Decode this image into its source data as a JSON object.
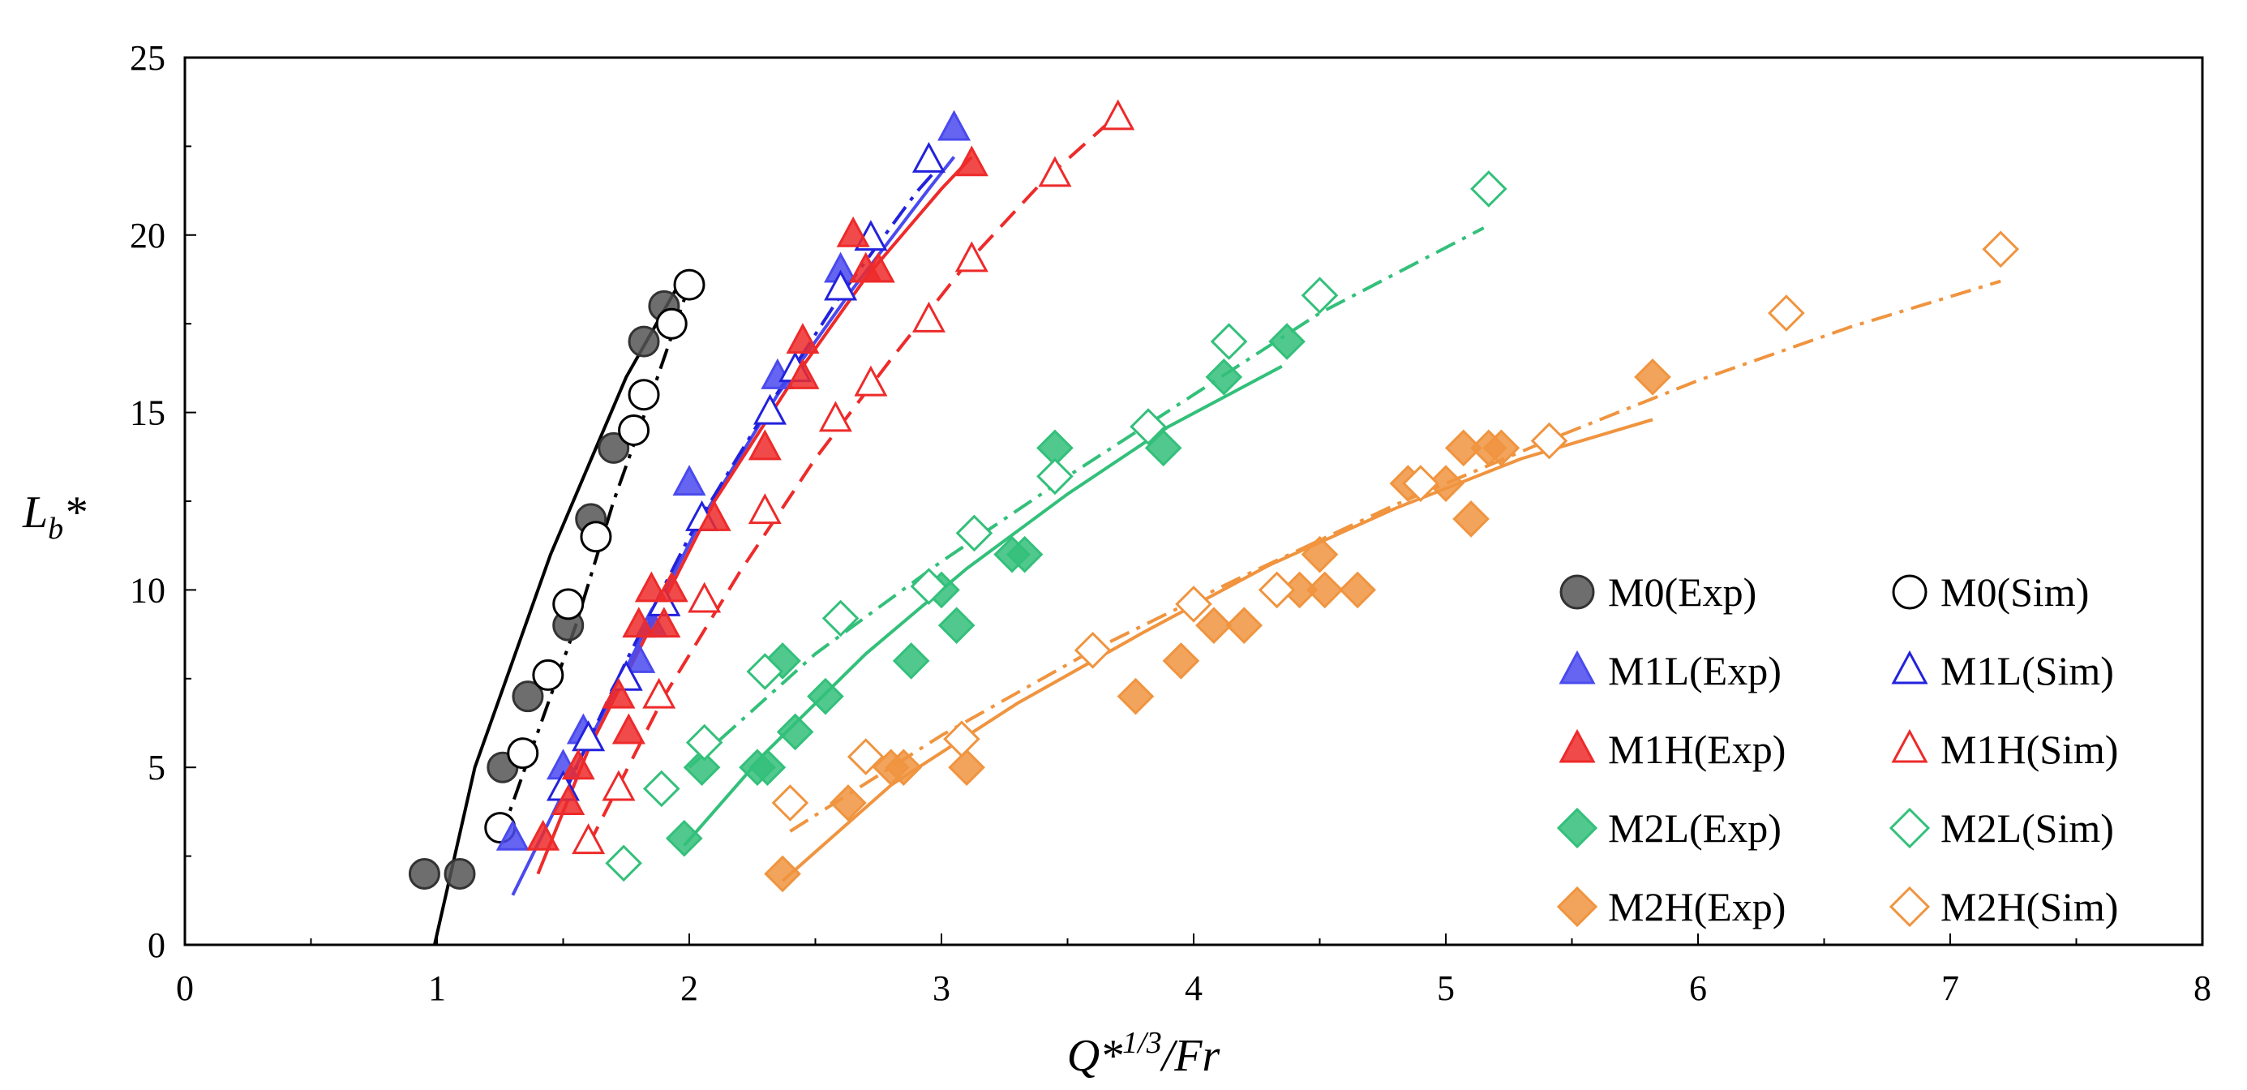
{
  "chart_data": {
    "type": "scatter",
    "title": "",
    "xlabel": {
      "base": "Q*",
      "sup": "1/3",
      "rest": "/Fr"
    },
    "ylabel": {
      "base": "L",
      "sub": "b",
      "rest": "*"
    },
    "xlim": [
      0,
      8
    ],
    "ylim": [
      0,
      25
    ],
    "xticks": [
      0,
      1,
      2,
      3,
      4,
      5,
      6,
      7,
      8
    ],
    "yticks": [
      0,
      5,
      10,
      15,
      20,
      25
    ],
    "grid": false,
    "legend_position": "bottom-right",
    "series": [
      {
        "name": "M0(Exp)",
        "marker": "circle",
        "filled": true,
        "color": "#555555",
        "points": [
          [
            0.95,
            2
          ],
          [
            1.09,
            2
          ],
          [
            1.26,
            5
          ],
          [
            1.36,
            7
          ],
          [
            1.52,
            9
          ],
          [
            1.61,
            12
          ],
          [
            1.7,
            14
          ],
          [
            1.82,
            17
          ],
          [
            1.9,
            18
          ]
        ],
        "fit": {
          "style": "solid",
          "points": [
            [
              0.99,
              0
            ],
            [
              1.15,
              5
            ],
            [
              1.3,
              8
            ],
            [
              1.45,
              11
            ],
            [
              1.6,
              13.5
            ],
            [
              1.75,
              16
            ],
            [
              1.95,
              18.5
            ]
          ]
        }
      },
      {
        "name": "M0(Sim)",
        "marker": "circle",
        "filled": false,
        "color": "#000000",
        "points": [
          [
            1.25,
            3.3
          ],
          [
            1.34,
            5.4
          ],
          [
            1.44,
            7.6
          ],
          [
            1.52,
            9.6
          ],
          [
            1.63,
            11.5
          ],
          [
            1.78,
            14.5
          ],
          [
            1.82,
            15.5
          ],
          [
            1.93,
            17.5
          ],
          [
            2.0,
            18.6
          ]
        ],
        "fit": {
          "style": "dashdot",
          "points": [
            [
              1.25,
              3
            ],
            [
              1.4,
              6
            ],
            [
              1.55,
              9
            ],
            [
              1.7,
              12.5
            ],
            [
              1.85,
              15.5
            ],
            [
              2.0,
              18.6
            ]
          ]
        }
      },
      {
        "name": "M1L(Exp)",
        "marker": "triangle",
        "filled": true,
        "color": "#4a4aee",
        "points": [
          [
            1.3,
            3
          ],
          [
            1.5,
            5
          ],
          [
            1.58,
            6
          ],
          [
            1.8,
            8
          ],
          [
            1.85,
            9
          ],
          [
            2.0,
            13
          ],
          [
            2.35,
            16
          ],
          [
            2.6,
            19
          ],
          [
            3.05,
            23
          ]
        ],
        "fit": {
          "style": "solid",
          "points": [
            [
              1.3,
              1.4
            ],
            [
              1.55,
              5
            ],
            [
              1.8,
              8.5
            ],
            [
              2.05,
              12
            ],
            [
              2.35,
              15.5
            ],
            [
              2.65,
              18.5
            ],
            [
              2.95,
              21.3
            ],
            [
              3.05,
              22.2
            ]
          ]
        }
      },
      {
        "name": "M1L(Sim)",
        "marker": "triangle",
        "filled": false,
        "color": "#2222dd",
        "points": [
          [
            1.5,
            4.4
          ],
          [
            1.6,
            5.8
          ],
          [
            1.75,
            7.5
          ],
          [
            1.9,
            9.6
          ],
          [
            2.05,
            12.0
          ],
          [
            2.32,
            15.0
          ],
          [
            2.42,
            16.2
          ],
          [
            2.6,
            18.5
          ],
          [
            2.72,
            19.9
          ],
          [
            2.95,
            22.1
          ]
        ],
        "fit": {
          "style": "dashdot",
          "points": [
            [
              1.5,
              4.2
            ],
            [
              1.75,
              8
            ],
            [
              2.0,
              11.5
            ],
            [
              2.3,
              15
            ],
            [
              2.6,
              18.3
            ],
            [
              2.9,
              21.2
            ],
            [
              3.0,
              22
            ]
          ]
        }
      },
      {
        "name": "M1H(Exp)",
        "marker": "triangle",
        "filled": true,
        "color": "#ee2a2a",
        "points": [
          [
            1.42,
            3
          ],
          [
            1.52,
            4
          ],
          [
            1.56,
            5
          ],
          [
            1.76,
            6
          ],
          [
            1.72,
            7
          ],
          [
            1.8,
            9
          ],
          [
            1.85,
            10
          ],
          [
            1.9,
            9
          ],
          [
            1.93,
            10
          ],
          [
            2.1,
            12
          ],
          [
            2.3,
            14
          ],
          [
            2.45,
            17
          ],
          [
            2.45,
            16
          ],
          [
            2.65,
            20
          ],
          [
            2.7,
            19
          ],
          [
            2.75,
            19
          ],
          [
            3.12,
            22
          ]
        ],
        "fit": {
          "style": "solid",
          "points": [
            [
              1.4,
              2
            ],
            [
              1.6,
              5.5
            ],
            [
              1.85,
              9
            ],
            [
              2.1,
              12.5
            ],
            [
              2.4,
              15.8
            ],
            [
              2.7,
              18.8
            ],
            [
              3.0,
              21.3
            ],
            [
              3.12,
              22.2
            ]
          ]
        }
      },
      {
        "name": "M1H(Sim)",
        "marker": "triangle",
        "filled": false,
        "color": "#ee2a2a",
        "points": [
          [
            1.6,
            2.9
          ],
          [
            1.72,
            4.4
          ],
          [
            1.88,
            7.0
          ],
          [
            2.06,
            9.7
          ],
          [
            2.3,
            12.2
          ],
          [
            2.58,
            14.8
          ],
          [
            2.72,
            15.8
          ],
          [
            2.95,
            17.6
          ],
          [
            3.12,
            19.3
          ],
          [
            3.45,
            21.7
          ],
          [
            3.7,
            23.3
          ]
        ],
        "fit": {
          "style": "dashed",
          "points": [
            [
              1.6,
              2.8
            ],
            [
              1.9,
              7
            ],
            [
              2.2,
              10.5
            ],
            [
              2.5,
              13.7
            ],
            [
              2.8,
              16.5
            ],
            [
              3.1,
              19.2
            ],
            [
              3.4,
              21.5
            ],
            [
              3.7,
              23.4
            ]
          ]
        }
      },
      {
        "name": "M2L(Exp)",
        "marker": "diamond",
        "filled": true,
        "color": "#33c07a",
        "points": [
          [
            1.98,
            3
          ],
          [
            2.05,
            5
          ],
          [
            2.27,
            5
          ],
          [
            2.31,
            5
          ],
          [
            2.37,
            8
          ],
          [
            2.42,
            6
          ],
          [
            2.54,
            7
          ],
          [
            2.88,
            8
          ],
          [
            3.0,
            10
          ],
          [
            3.06,
            9
          ],
          [
            3.28,
            11
          ],
          [
            3.33,
            11
          ],
          [
            3.45,
            14
          ],
          [
            3.88,
            14
          ],
          [
            4.12,
            16
          ],
          [
            4.37,
            17
          ]
        ],
        "fit": {
          "style": "solid",
          "points": [
            [
              1.98,
              2.8
            ],
            [
              2.3,
              5.4
            ],
            [
              2.7,
              8.2
            ],
            [
              3.1,
              10.6
            ],
            [
              3.5,
              12.7
            ],
            [
              3.9,
              14.6
            ],
            [
              4.35,
              16.3
            ]
          ]
        }
      },
      {
        "name": "M2L(Sim)",
        "marker": "diamond",
        "filled": false,
        "color": "#33c07a",
        "points": [
          [
            1.74,
            2.3
          ],
          [
            1.89,
            4.4
          ],
          [
            2.06,
            5.7
          ],
          [
            2.3,
            7.7
          ],
          [
            2.6,
            9.2
          ],
          [
            2.95,
            10.1
          ],
          [
            3.13,
            11.6
          ],
          [
            3.45,
            13.2
          ],
          [
            3.82,
            14.6
          ],
          [
            4.14,
            17.0
          ],
          [
            4.5,
            18.3
          ],
          [
            5.17,
            21.3
          ]
        ],
        "fit": {
          "style": "dashdot",
          "points": [
            [
              2.0,
              5.0
            ],
            [
              2.5,
              8.2
            ],
            [
              3.0,
              10.8
            ],
            [
              3.5,
              13.2
            ],
            [
              4.0,
              15.5
            ],
            [
              4.5,
              17.8
            ],
            [
              5.15,
              20.2
            ]
          ]
        }
      },
      {
        "name": "M2H(Exp)",
        "marker": "diamond",
        "filled": true,
        "color": "#f0943f",
        "points": [
          [
            2.37,
            2
          ],
          [
            2.63,
            4
          ],
          [
            2.8,
            5
          ],
          [
            2.85,
            5
          ],
          [
            3.1,
            5
          ],
          [
            3.77,
            7
          ],
          [
            3.95,
            8
          ],
          [
            4.08,
            9
          ],
          [
            4.2,
            9
          ],
          [
            4.42,
            10
          ],
          [
            4.52,
            10
          ],
          [
            4.5,
            11
          ],
          [
            4.65,
            10
          ],
          [
            4.85,
            13
          ],
          [
            5.0,
            13
          ],
          [
            5.07,
            14
          ],
          [
            5.1,
            12
          ],
          [
            5.17,
            14
          ],
          [
            5.22,
            14
          ],
          [
            5.82,
            16
          ]
        ],
        "fit": {
          "style": "solid",
          "points": [
            [
              2.37,
              1.8
            ],
            [
              2.8,
              4.5
            ],
            [
              3.3,
              6.8
            ],
            [
              3.8,
              8.8
            ],
            [
              4.3,
              10.7
            ],
            [
              4.8,
              12.3
            ],
            [
              5.3,
              13.7
            ],
            [
              5.82,
              14.8
            ]
          ]
        }
      },
      {
        "name": "M2H(Sim)",
        "marker": "diamond",
        "filled": false,
        "color": "#f0943f",
        "points": [
          [
            2.4,
            4.0
          ],
          [
            2.7,
            5.3
          ],
          [
            3.08,
            5.8
          ],
          [
            3.6,
            8.3
          ],
          [
            4.0,
            9.6
          ],
          [
            4.33,
            10.0
          ],
          [
            4.9,
            13.0
          ],
          [
            5.41,
            14.2
          ],
          [
            6.35,
            17.8
          ],
          [
            7.2,
            19.6
          ]
        ],
        "fit": {
          "style": "dashdot",
          "points": [
            [
              2.4,
              3.2
            ],
            [
              3.0,
              5.9
            ],
            [
              3.6,
              8.3
            ],
            [
              4.2,
              10.4
            ],
            [
              4.8,
              12.4
            ],
            [
              5.4,
              14.2
            ],
            [
              6.0,
              15.9
            ],
            [
              6.6,
              17.4
            ],
            [
              7.2,
              18.7
            ]
          ]
        }
      }
    ]
  }
}
